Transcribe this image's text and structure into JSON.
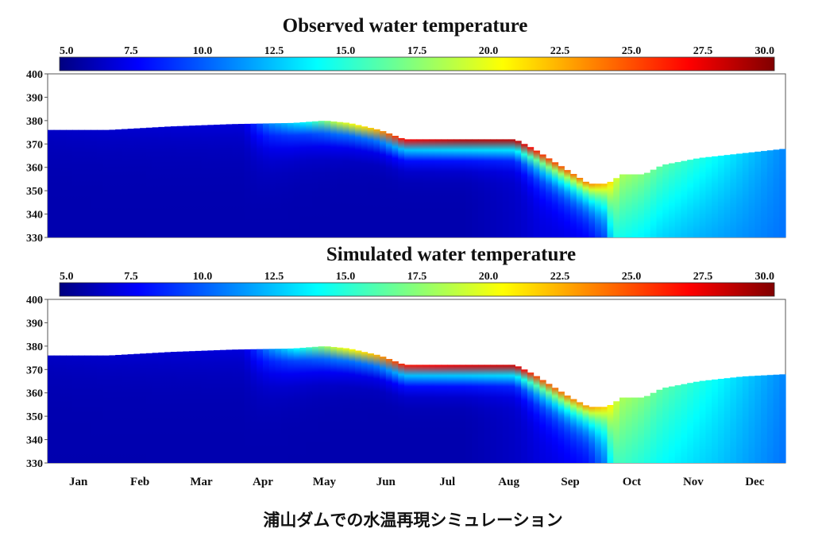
{
  "chart_data": [
    {
      "type": "heatmap",
      "title": "Observed water temperature",
      "colorbar": {
        "ticks": [
          "5.0",
          "7.5",
          "10.0",
          "12.5",
          "15.0",
          "17.5",
          "20.0",
          "22.5",
          "25.0",
          "27.5",
          "30.0"
        ],
        "range": [
          5,
          30
        ]
      },
      "y_ticks": [
        "400",
        "390",
        "380",
        "370",
        "360",
        "350",
        "340",
        "330"
      ],
      "ylim": [
        330,
        400
      ],
      "xlim": [
        0,
        12
      ],
      "surface_level": [
        [
          0,
          376
        ],
        [
          1,
          376
        ],
        [
          2,
          377.5
        ],
        [
          3,
          378.5
        ],
        [
          4,
          379
        ],
        [
          4.5,
          380
        ],
        [
          4.9,
          379
        ],
        [
          5.4,
          376
        ],
        [
          5.8,
          372
        ],
        [
          6.5,
          372
        ],
        [
          7,
          372
        ],
        [
          7.6,
          372
        ],
        [
          7.9,
          368
        ],
        [
          8.5,
          358
        ],
        [
          8.8,
          353
        ],
        [
          9.1,
          353
        ],
        [
          9.35,
          357
        ],
        [
          9.7,
          357
        ],
        [
          10,
          361
        ],
        [
          10.6,
          364
        ],
        [
          11.3,
          366
        ],
        [
          12,
          368
        ]
      ],
      "profile": [
        {
          "x": 0,
          "top": 6.5,
          "depth_scale": 10,
          "bottom": 6
        },
        {
          "x": 3.2,
          "top": 7,
          "depth_scale": 10,
          "bottom": 6
        },
        {
          "x": 3.6,
          "top": 11,
          "depth_scale": 8,
          "bottom": 6
        },
        {
          "x": 4.2,
          "top": 14,
          "depth_scale": 6,
          "bottom": 6
        },
        {
          "x": 4.7,
          "top": 19,
          "depth_scale": 5,
          "bottom": 6
        },
        {
          "x": 5.3,
          "top": 22,
          "depth_scale": 4,
          "bottom": 6
        },
        {
          "x": 5.8,
          "top": 27,
          "depth_scale": 4,
          "bottom": 6
        },
        {
          "x": 6.8,
          "top": 28.5,
          "depth_scale": 4,
          "bottom": 6
        },
        {
          "x": 7.6,
          "top": 28.5,
          "depth_scale": 4,
          "bottom": 6.5
        },
        {
          "x": 8,
          "top": 26,
          "depth_scale": 6,
          "bottom": 7
        },
        {
          "x": 8.8,
          "top": 23.5,
          "depth_scale": 8,
          "bottom": 7
        },
        {
          "x": 9.1,
          "top": 22,
          "depth_scale": 14,
          "bottom": 7
        },
        {
          "x": 9.3,
          "top": 18.5,
          "depth_scale": 60,
          "bottom": 7.5
        },
        {
          "x": 9.9,
          "top": 16.5,
          "depth_scale": 60,
          "bottom": 8
        },
        {
          "x": 10.9,
          "top": 14,
          "depth_scale": 60,
          "bottom": 9
        },
        {
          "x": 12,
          "top": 11,
          "depth_scale": 60,
          "bottom": 10
        }
      ]
    },
    {
      "type": "heatmap",
      "title": "Simulated water temperature",
      "colorbar": {
        "ticks": [
          "5.0",
          "7.5",
          "10.0",
          "12.5",
          "15.0",
          "17.5",
          "20.0",
          "22.5",
          "25.0",
          "27.5",
          "30.0"
        ],
        "range": [
          5,
          30
        ]
      },
      "y_ticks": [
        "400",
        "390",
        "380",
        "370",
        "360",
        "350",
        "340",
        "330"
      ],
      "x_ticks": [
        "Jan",
        "Feb",
        "Mar",
        "Apr",
        "May",
        "Jun",
        "Jul",
        "Aug",
        "Sep",
        "Oct",
        "Nov",
        "Dec"
      ],
      "ylim": [
        330,
        400
      ],
      "xlim": [
        0,
        12
      ],
      "surface_level": [
        [
          0,
          376
        ],
        [
          1,
          376
        ],
        [
          2,
          377.5
        ],
        [
          3,
          378.5
        ],
        [
          4,
          379
        ],
        [
          4.5,
          380
        ],
        [
          4.9,
          379
        ],
        [
          5.4,
          376
        ],
        [
          5.8,
          372
        ],
        [
          6.5,
          372
        ],
        [
          7,
          372
        ],
        [
          7.6,
          372
        ],
        [
          7.9,
          368
        ],
        [
          8.5,
          358
        ],
        [
          8.8,
          354
        ],
        [
          9.1,
          354
        ],
        [
          9.35,
          358
        ],
        [
          9.7,
          358
        ],
        [
          10,
          362
        ],
        [
          10.6,
          365
        ],
        [
          11.3,
          367
        ],
        [
          12,
          368
        ]
      ],
      "profile": [
        {
          "x": 0,
          "top": 6.5,
          "depth_scale": 10,
          "bottom": 6
        },
        {
          "x": 3.2,
          "top": 7,
          "depth_scale": 10,
          "bottom": 6
        },
        {
          "x": 3.6,
          "top": 11,
          "depth_scale": 8,
          "bottom": 6
        },
        {
          "x": 4.2,
          "top": 15,
          "depth_scale": 6,
          "bottom": 6
        },
        {
          "x": 4.7,
          "top": 19.5,
          "depth_scale": 5,
          "bottom": 6
        },
        {
          "x": 5.3,
          "top": 22,
          "depth_scale": 4,
          "bottom": 6
        },
        {
          "x": 5.8,
          "top": 26.5,
          "depth_scale": 4,
          "bottom": 6
        },
        {
          "x": 6.8,
          "top": 27.5,
          "depth_scale": 4,
          "bottom": 6
        },
        {
          "x": 7.6,
          "top": 28,
          "depth_scale": 4,
          "bottom": 6.5
        },
        {
          "x": 8,
          "top": 25,
          "depth_scale": 6,
          "bottom": 7
        },
        {
          "x": 8.8,
          "top": 23,
          "depth_scale": 8,
          "bottom": 7.5
        },
        {
          "x": 9.1,
          "top": 21.5,
          "depth_scale": 14,
          "bottom": 9
        },
        {
          "x": 9.3,
          "top": 18.5,
          "depth_scale": 60,
          "bottom": 11
        },
        {
          "x": 9.9,
          "top": 16.5,
          "depth_scale": 60,
          "bottom": 11
        },
        {
          "x": 10.9,
          "top": 14,
          "depth_scale": 60,
          "bottom": 11
        },
        {
          "x": 12,
          "top": 11,
          "depth_scale": 60,
          "bottom": 10
        }
      ]
    }
  ],
  "caption": "浦山ダムでの水温再現シミュレーション",
  "colors": {
    "jet_stops": [
      "#000080",
      "#0000ff",
      "#00ffff",
      "#ffff00",
      "#ff0000",
      "#800000"
    ],
    "frame": "#555555"
  }
}
